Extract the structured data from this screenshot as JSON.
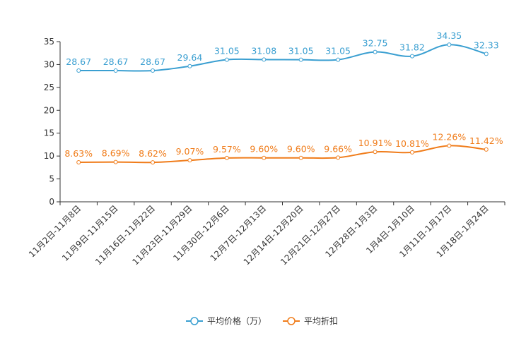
{
  "chart_data": {
    "type": "line",
    "categories": [
      "11月2日-11月8日",
      "11月9日-11月15日",
      "11月16日-11月22日",
      "11月23日-11月29日",
      "11月30日-12月6日",
      "12月7日-12月13日",
      "12月14日-12月20日",
      "12月21日-12月27日",
      "12月28日-1月3日",
      "1月4日-1月10日",
      "1月11日-1月17日",
      "1月18日-1月24日"
    ],
    "series": [
      {
        "name": "平均价格（万）",
        "color": "#3a9fd1",
        "values": [
          28.67,
          28.67,
          28.67,
          29.64,
          31.05,
          31.08,
          31.05,
          31.05,
          32.75,
          31.82,
          34.35,
          32.33
        ],
        "labels": [
          "28.67",
          "28.67",
          "28.67",
          "29.64",
          "31.05",
          "31.08",
          "31.05",
          "31.05",
          "32.75",
          "31.82",
          "34.35",
          "32.33"
        ]
      },
      {
        "name": "平均折扣",
        "color": "#f07c1a",
        "values": [
          8.63,
          8.69,
          8.62,
          9.07,
          9.57,
          9.6,
          9.6,
          9.66,
          10.91,
          10.81,
          12.26,
          11.42
        ],
        "labels": [
          "8.63%",
          "8.69%",
          "8.62%",
          "9.07%",
          "9.57%",
          "9.60%",
          "9.60%",
          "9.66%",
          "10.91%",
          "10.81%",
          "12.26%",
          "11.42%"
        ]
      }
    ],
    "yticks": [
      "0",
      "5",
      "10",
      "15",
      "20",
      "25",
      "30",
      "35"
    ],
    "ylim": [
      0,
      35
    ],
    "title": "",
    "xlabel": "",
    "ylabel": "",
    "legend_position": "bottom-center"
  }
}
